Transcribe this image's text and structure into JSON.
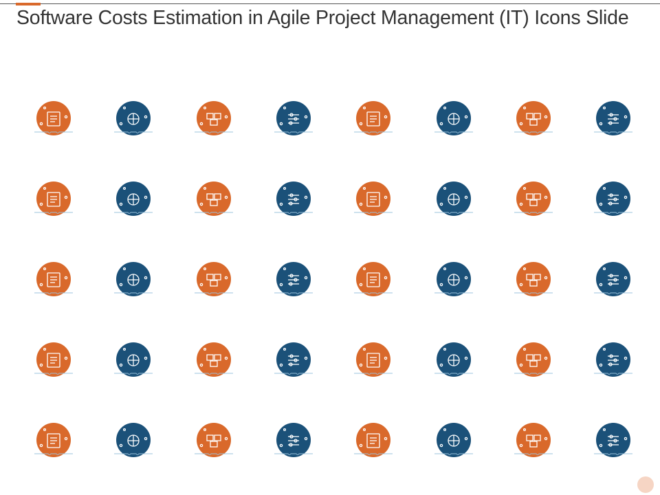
{
  "slide": {
    "title": "Software Costs Estimation in Agile Project Management (IT) Icons Slide"
  },
  "colors": {
    "orange": "#D9692B",
    "blue": "#1B5179",
    "accent": "#D9692B"
  },
  "icons": [
    [
      "cost-document-icon",
      "boxes-stack-icon",
      "weighing-scale-icon",
      "package-box-icon",
      "network-nodes-icon",
      "blueprint-gear-icon",
      "laptop-settings-icon",
      "smart-home-icon"
    ],
    [
      "calculator-report-icon",
      "selection-frame-icon",
      "document-list-icon",
      "sliders-settings-icon",
      "blueprint-dollar-icon",
      "clipboard-checklist-icon",
      "team-gear-icon",
      "checklist-clock-icon"
    ],
    [
      "invoice-icon",
      "task-list-icon",
      "price-tag-icon",
      "equalizer-icon",
      "calendar-settings-icon",
      "presentation-chart-icon",
      "team-idea-icon",
      "mobile-payment-icon"
    ],
    [
      "document-edit-icon",
      "dollar-box-icon",
      "open-door-icon",
      "report-document-icon",
      "control-sliders-icon",
      "document-search-icon",
      "house-dollar-icon",
      "laptop-dollar-icon"
    ],
    [
      "stopwatch-icon",
      "delivery-box-icon",
      "checklist-pencil-icon",
      "monitor-code-icon",
      "speedometer-icon",
      "rocket-launch-icon",
      "dollar-chart-icon",
      "calendar-clock-icon"
    ]
  ]
}
